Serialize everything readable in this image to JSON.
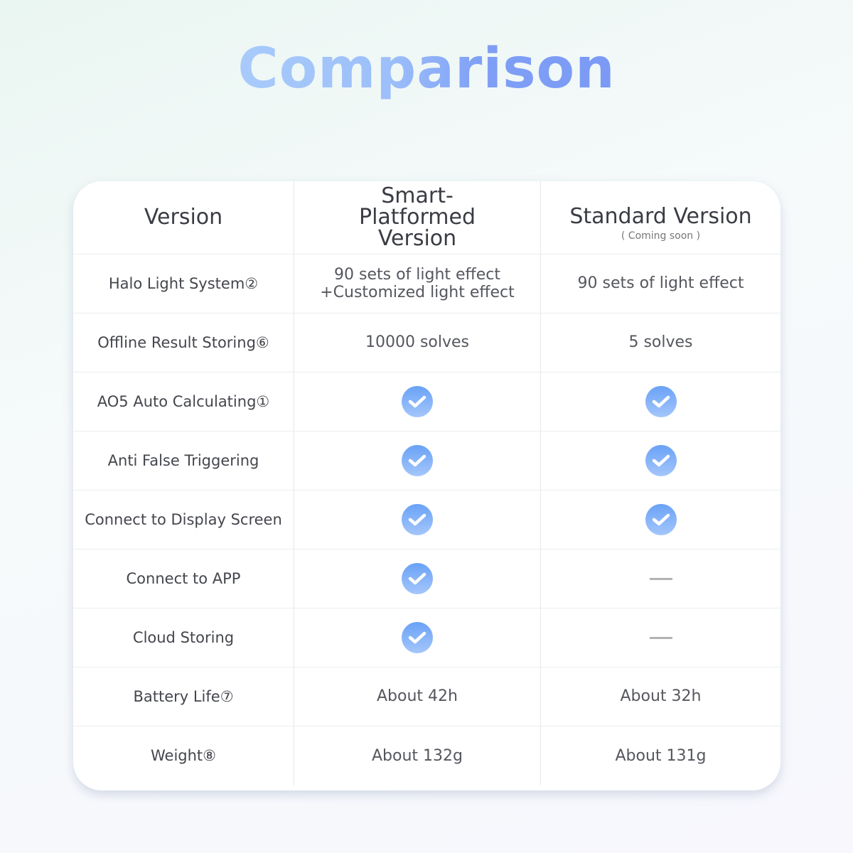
{
  "title": "Comparison",
  "header": {
    "feature": "Version",
    "col1": "Smart-Platformed Version",
    "col2": "Standard Version",
    "col2_note": "( Coming soon )"
  },
  "rows": [
    {
      "feature": "Halo Light System②",
      "col1": "90 sets of light effect\n+Customized light effect",
      "col2": "90 sets of light effect"
    },
    {
      "feature": "Offline Result Storing⑥",
      "col1": "10000 solves",
      "col2": "5 solves"
    },
    {
      "feature": "AO5 Auto Calculating①",
      "col1": "check",
      "col2": "check"
    },
    {
      "feature": "Anti False Triggering",
      "col1": "check",
      "col2": "check"
    },
    {
      "feature": "Connect to Display Screen",
      "col1": "check",
      "col2": "check"
    },
    {
      "feature": "Connect to APP",
      "col1": "check",
      "col2": "dash"
    },
    {
      "feature": "Cloud Storing",
      "col1": "check",
      "col2": "dash"
    },
    {
      "feature": "Battery Life⑦",
      "col1": "About 42h",
      "col2": "About 32h"
    },
    {
      "feature": "Weight⑧",
      "col1": "About 132g",
      "col2": "About 131g"
    }
  ],
  "colors": {
    "accent": "#7b9af5",
    "check_top": "#6aa2f6",
    "check_bottom": "#a4c6fb"
  }
}
